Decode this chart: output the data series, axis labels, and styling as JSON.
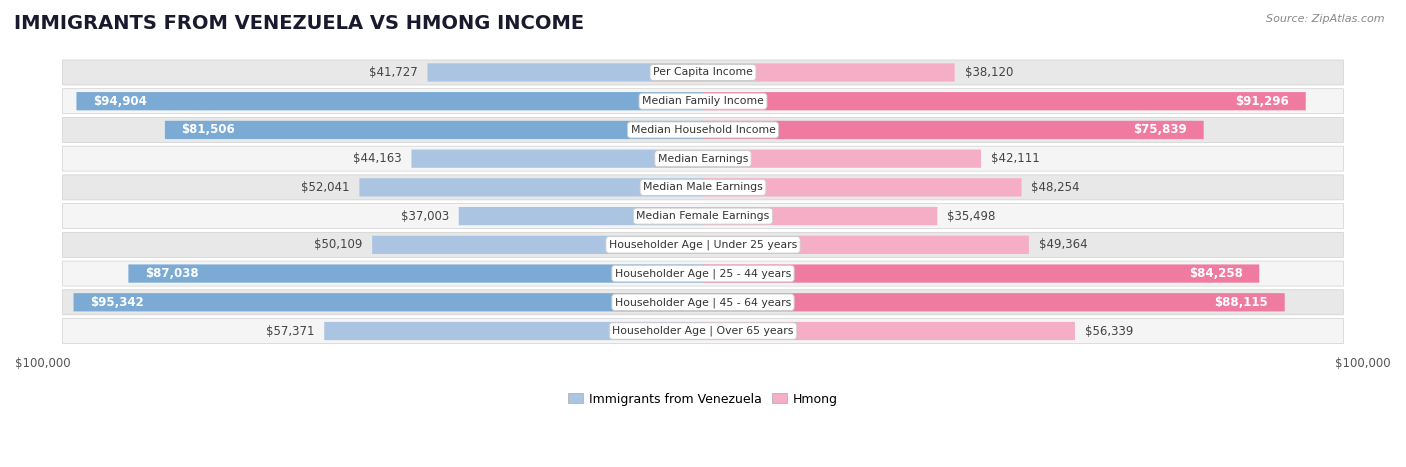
{
  "title": "IMMIGRANTS FROM VENEZUELA VS HMONG INCOME",
  "source": "Source: ZipAtlas.com",
  "categories": [
    "Per Capita Income",
    "Median Family Income",
    "Median Household Income",
    "Median Earnings",
    "Median Male Earnings",
    "Median Female Earnings",
    "Householder Age | Under 25 years",
    "Householder Age | 25 - 44 years",
    "Householder Age | 45 - 64 years",
    "Householder Age | Over 65 years"
  ],
  "venezuela_values": [
    41727,
    94904,
    81506,
    44163,
    52041,
    37003,
    50109,
    87038,
    95342,
    57371
  ],
  "hmong_values": [
    38120,
    91296,
    75839,
    42111,
    48254,
    35498,
    49364,
    84258,
    88115,
    56339
  ],
  "venezuela_labels": [
    "$41,727",
    "$94,904",
    "$81,506",
    "$44,163",
    "$52,041",
    "$37,003",
    "$50,109",
    "$87,038",
    "$95,342",
    "$57,371"
  ],
  "hmong_labels": [
    "$38,120",
    "$91,296",
    "$75,839",
    "$42,111",
    "$48,254",
    "$35,498",
    "$49,364",
    "$84,258",
    "$88,115",
    "$56,339"
  ],
  "max_value": 100000,
  "venezuela_color_small": "#aac4e2",
  "venezuela_color_large": "#7baad4",
  "hmong_color_small": "#f5aec5",
  "hmong_color_large": "#f07ba0",
  "row_colors": [
    "#e8e8e8",
    "#f5f5f5",
    "#e8e8e8",
    "#f5f5f5",
    "#e8e8e8",
    "#f5f5f5",
    "#e8e8e8",
    "#f5f5f5",
    "#e8e8e8",
    "#f5f5f5"
  ],
  "label_fontsize": 8.5,
  "title_fontsize": 14,
  "legend_fontsize": 9,
  "value_threshold": 75000
}
